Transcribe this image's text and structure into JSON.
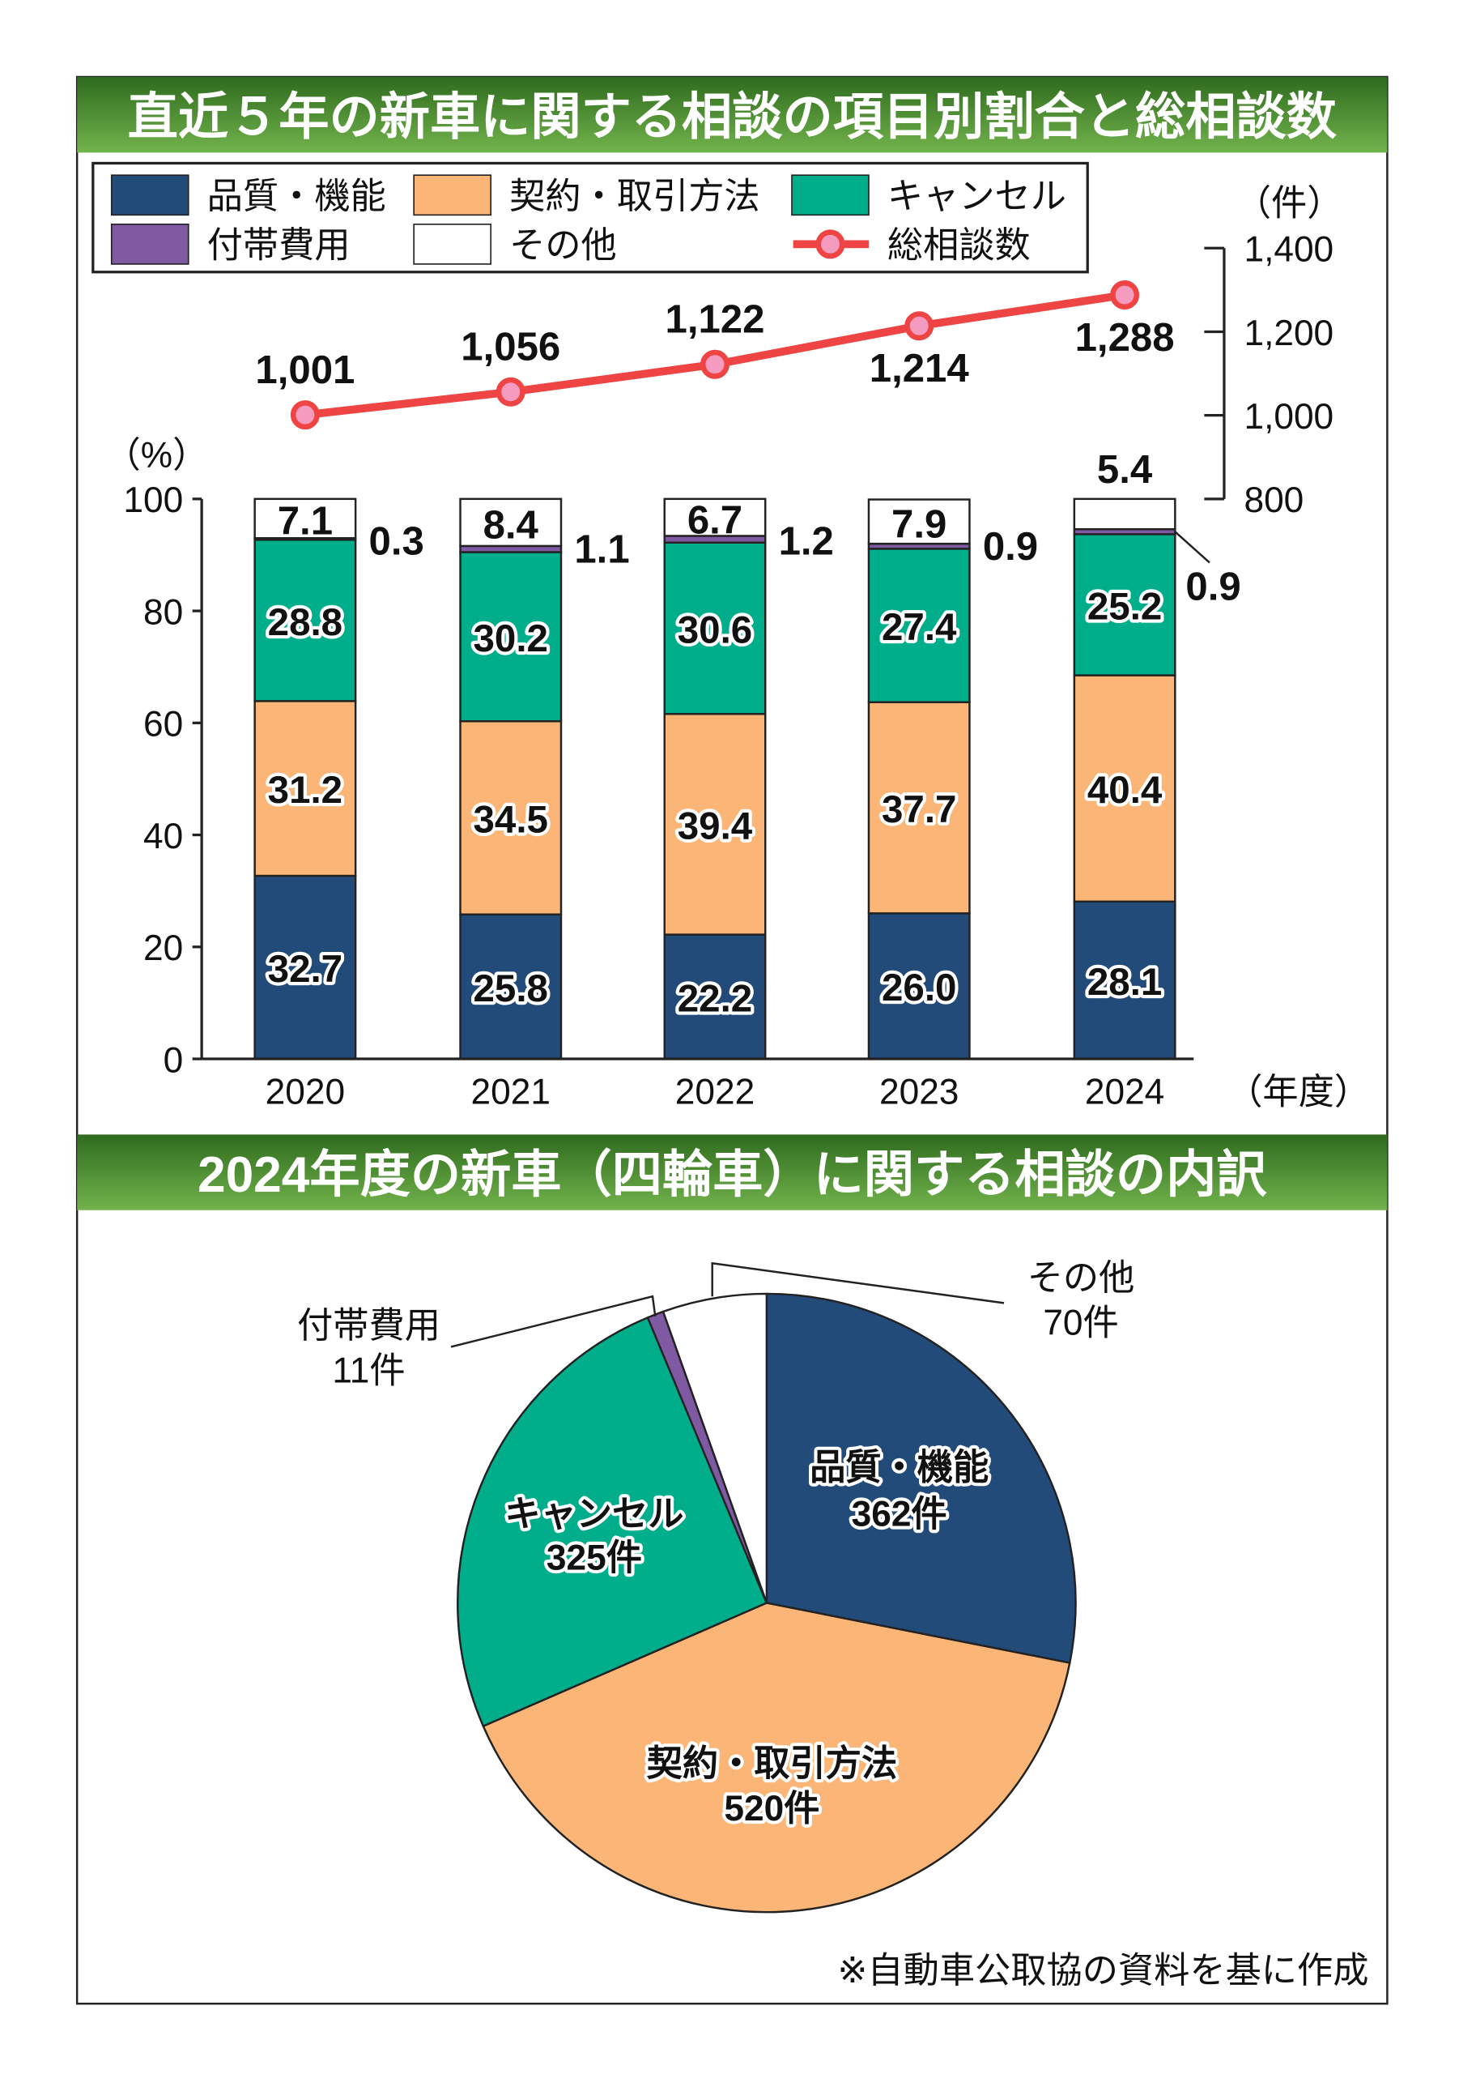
{
  "colors": {
    "quality": "#234b7a",
    "contract": "#fbb677",
    "cancel": "#00ae8c",
    "accessory": "#7f5aa3",
    "other": "#ffffff",
    "total": "#ee4444",
    "marker": "#f59bc0",
    "band_top": "#2f6b1e",
    "band_bottom": "#6fb04a"
  },
  "chart_data": [
    {
      "type": "bar",
      "title": "直近５年の新車に関する相談の項目別割合と総相談数",
      "stacked": true,
      "categories": [
        "2020",
        "2021",
        "2022",
        "2023",
        "2024"
      ],
      "xlabel": "（年度）",
      "ylabel": "（%）",
      "ylim": [
        0,
        100
      ],
      "yticks": [
        "0",
        "20",
        "40",
        "60",
        "80",
        "100"
      ],
      "series": [
        {
          "name": "品質・機能",
          "key": "quality",
          "values": [
            32.7,
            25.8,
            22.2,
            26.0,
            28.1
          ],
          "labels": [
            "32.7",
            "25.8",
            "22.2",
            "26.0",
            "28.1"
          ]
        },
        {
          "name": "契約・取引方法",
          "key": "contract",
          "values": [
            31.2,
            34.5,
            39.4,
            37.7,
            40.4
          ],
          "labels": [
            "31.2",
            "34.5",
            "39.4",
            "37.7",
            "40.4"
          ]
        },
        {
          "name": "キャンセル",
          "key": "cancel",
          "values": [
            28.8,
            30.2,
            30.6,
            27.4,
            25.2
          ],
          "labels": [
            "28.8",
            "30.2",
            "30.6",
            "27.4",
            "25.2"
          ]
        },
        {
          "name": "付帯費用",
          "key": "accessory",
          "values": [
            0.3,
            1.1,
            1.2,
            0.9,
            0.9
          ],
          "labels": [
            "0.3",
            "1.1",
            "1.2",
            "0.9",
            "0.9"
          ]
        },
        {
          "name": "その他",
          "key": "other",
          "values": [
            7.1,
            8.4,
            6.7,
            7.9,
            5.4
          ],
          "labels": [
            "7.1",
            "8.4",
            "6.7",
            "7.9",
            "5.4"
          ]
        }
      ],
      "line": {
        "name": "総相談数",
        "values": [
          1001,
          1056,
          1122,
          1214,
          1288
        ],
        "labels": [
          "1,001",
          "1,056",
          "1,122",
          "1,214",
          "1,288"
        ],
        "y2label": "（件）",
        "y2lim": [
          800,
          1400
        ],
        "y2ticks": [
          "800",
          "1,000",
          "1,200",
          "1,400"
        ]
      },
      "legend": "top-left"
    },
    {
      "type": "pie",
      "title": "2024年度の新車（四輪車）に関する相談の内訳",
      "slices": [
        {
          "name": "品質・機能",
          "key": "quality",
          "value": 362,
          "label": "362件"
        },
        {
          "name": "契約・取引方法",
          "key": "contract",
          "value": 520,
          "label": "520件"
        },
        {
          "name": "キャンセル",
          "key": "cancel",
          "value": 325,
          "label": "325件"
        },
        {
          "name": "付帯費用",
          "key": "accessory",
          "value": 11,
          "label": "11件"
        },
        {
          "name": "その他",
          "key": "other",
          "value": 70,
          "label": "70件"
        }
      ]
    }
  ],
  "footnote": "※自動車公取協の資料を基に作成"
}
